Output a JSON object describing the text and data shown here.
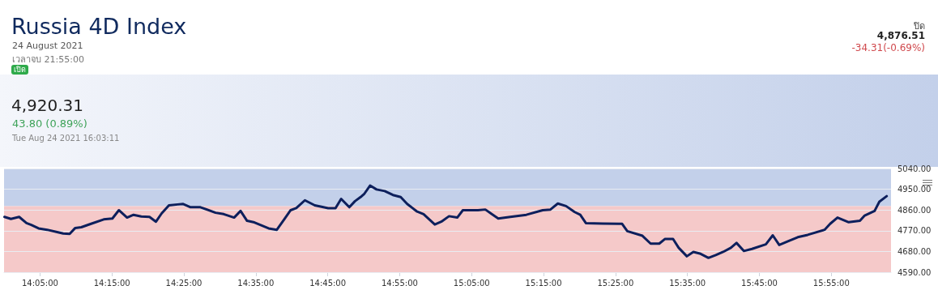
{
  "chart_data": {
    "type": "line",
    "title": "Russia 4D Index",
    "subtitle": "24 August 2021",
    "annotations": [
      "เวลาจบ 21:55:00",
      "เปิด",
      "4,920.31",
      "43.80 (0.89%)",
      "Tue Aug 24 2021 16:03:11",
      "ปิด",
      "4,876.51",
      "-34.31(-0.69%)"
    ],
    "series": [
      {
        "color": "#0d1f5c",
        "x": [
          14.001,
          14.016,
          14.035,
          14.052,
          14.063,
          14.08,
          14.1,
          14.123,
          14.137,
          14.152,
          14.165,
          14.179,
          14.203,
          14.231,
          14.251,
          14.266,
          14.285,
          14.3,
          14.318,
          14.337,
          14.352,
          14.365,
          14.382,
          14.402,
          14.415,
          14.432,
          14.455,
          14.49,
          14.509,
          14.533,
          14.548,
          14.563,
          14.58,
          14.613,
          14.632,
          14.649,
          14.664,
          14.677,
          14.697,
          14.72,
          14.751,
          14.768,
          14.781,
          14.8,
          14.813,
          14.826,
          14.835,
          14.848,
          14.863,
          14.882,
          14.901,
          14.919,
          14.934,
          14.957,
          14.972,
          14.998,
          15.013,
          15.031,
          15.05,
          15.063,
          15.098,
          15.115,
          15.13,
          15.145,
          15.173,
          15.21,
          15.248,
          15.266,
          15.283,
          15.302,
          15.322,
          15.335,
          15.348,
          15.386,
          15.432,
          15.444,
          15.479,
          15.498,
          15.518,
          15.531,
          15.55,
          15.563,
          15.582,
          15.597,
          15.612,
          15.632,
          15.649,
          15.666,
          15.684,
          15.697,
          15.714,
          15.733,
          15.765,
          15.781,
          15.796,
          15.815,
          15.839,
          15.862,
          15.901,
          15.914,
          15.931,
          15.957,
          15.983,
          15.994,
          16.017,
          16.028,
          16.045
        ],
        "values": [
          4830,
          4821,
          4830,
          4803,
          4795,
          4780,
          4774,
          4764,
          4758,
          4756,
          4782,
          4785,
          4801,
          4819,
          4823,
          4859,
          4827,
          4839,
          4832,
          4830,
          4809,
          4845,
          4880,
          4884,
          4886,
          4872,
          4872,
          4848,
          4842,
          4827,
          4856,
          4813,
          4806,
          4780,
          4774,
          4819,
          4859,
          4868,
          4902,
          4880,
          4868,
          4868,
          4908,
          4872,
          4898,
          4916,
          4931,
          4966,
          4949,
          4942,
          4925,
          4916,
          4886,
          4853,
          4842,
          4797,
          4809,
          4833,
          4827,
          4859,
          4859,
          4862,
          4842,
          4823,
          4830,
          4839,
          4859,
          4862,
          4888,
          4877,
          4851,
          4839,
          4803,
          4801,
          4800,
          4768,
          4748,
          4714,
          4714,
          4734,
          4734,
          4696,
          4659,
          4678,
          4671,
          4652,
          4664,
          4678,
          4696,
          4717,
          4682,
          4691,
          4711,
          4750,
          4708,
          4723,
          4742,
          4752,
          4774,
          4800,
          4827,
          4807,
          4813,
          4836,
          4856,
          4896,
          4920
        ]
      }
    ],
    "xlim": [
      14.0,
      16.055
    ],
    "xticks": [
      {
        "value": 14.083333,
        "label": "14:05:00"
      },
      {
        "value": 14.25,
        "label": "14:15:00"
      },
      {
        "value": 14.416667,
        "label": "14:25:00"
      },
      {
        "value": 14.583333,
        "label": "14:35:00"
      },
      {
        "value": 14.75,
        "label": "14:45:00"
      },
      {
        "value": 14.916667,
        "label": "14:55:00"
      },
      {
        "value": 15.083333,
        "label": "15:05:00"
      },
      {
        "value": 15.25,
        "label": "15:15:00"
      },
      {
        "value": 15.416667,
        "label": "15:25:00"
      },
      {
        "value": 15.583333,
        "label": "15:35:00"
      },
      {
        "value": 15.75,
        "label": "15:45:00"
      },
      {
        "value": 15.916667,
        "label": "15:55:00"
      }
    ],
    "ylim": [
      4590,
      5040
    ],
    "yticks": [
      {
        "value": 4590,
        "label": "4590.00"
      },
      {
        "value": 4680,
        "label": "4680.00"
      },
      {
        "value": 4770,
        "label": "4770.00"
      },
      {
        "value": 4860,
        "label": "4860.00"
      },
      {
        "value": 4950,
        "label": "4950.00"
      },
      {
        "value": 5040,
        "label": "5040.00"
      }
    ],
    "bands": [
      {
        "axis": "y",
        "from": 4876.51,
        "to": 5040,
        "color": "#c3d0ea"
      },
      {
        "axis": "y",
        "from": 4590,
        "to": 4876.51,
        "color": "#f5c9c9"
      }
    ],
    "grid": "y",
    "marker": "none",
    "line_style": "solid"
  }
}
